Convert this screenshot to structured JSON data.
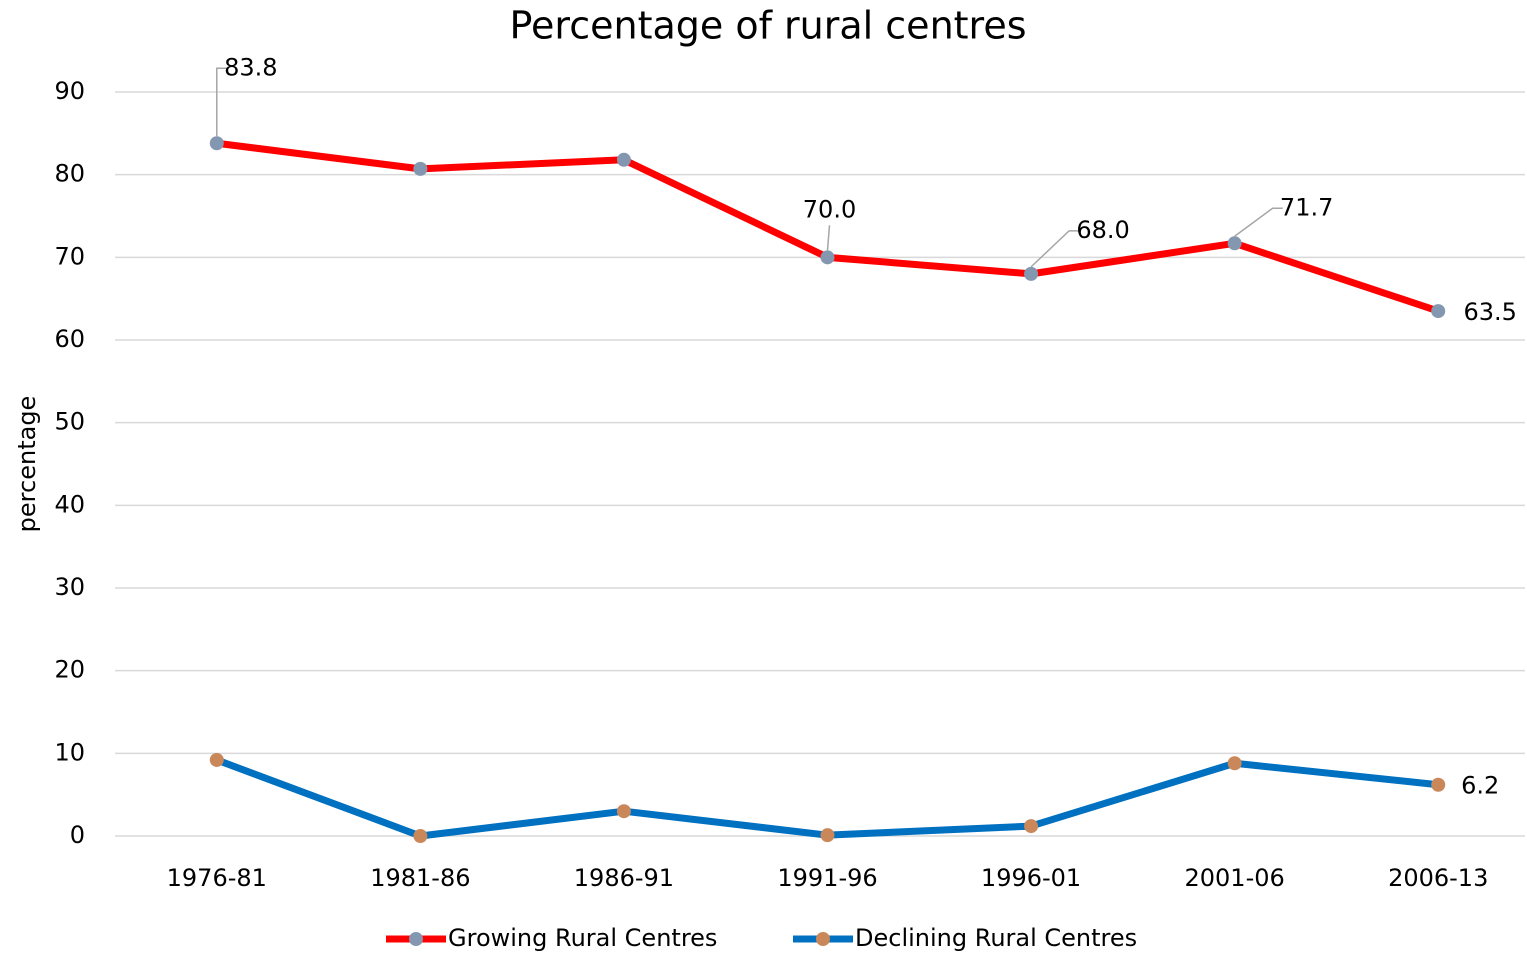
{
  "chart_data": {
    "type": "line",
    "title": "Percentage of rural centres",
    "y_label": "percentage",
    "categories": [
      "1976-81",
      "1981-86",
      "1986-91",
      "1991-96",
      "1996-01",
      "2001-06",
      "2006-13"
    ],
    "series": [
      {
        "name": "Growing Rural Centres",
        "color": "#ff0000",
        "marker_color": "#8497b0",
        "values": [
          83.8,
          80.7,
          81.8,
          70.0,
          68.0,
          71.7,
          63.5
        ],
        "value_labels": [
          "83.8",
          null,
          null,
          "70.0",
          "68.0",
          "71.7",
          "63.5"
        ]
      },
      {
        "name": "Declining Rural Centres",
        "color": "#0070c0",
        "marker_color": "#c9875a",
        "values": [
          9.2,
          0,
          3.0,
          0.1,
          1.2,
          8.8,
          6.2
        ],
        "value_labels": [
          null,
          null,
          null,
          null,
          null,
          null,
          "6.2"
        ]
      }
    ],
    "ylim": [
      0,
      90
    ],
    "yticks": [
      0,
      10,
      20,
      30,
      40,
      50,
      60,
      70,
      80,
      90
    ],
    "grid": true,
    "legend": "bottom"
  }
}
